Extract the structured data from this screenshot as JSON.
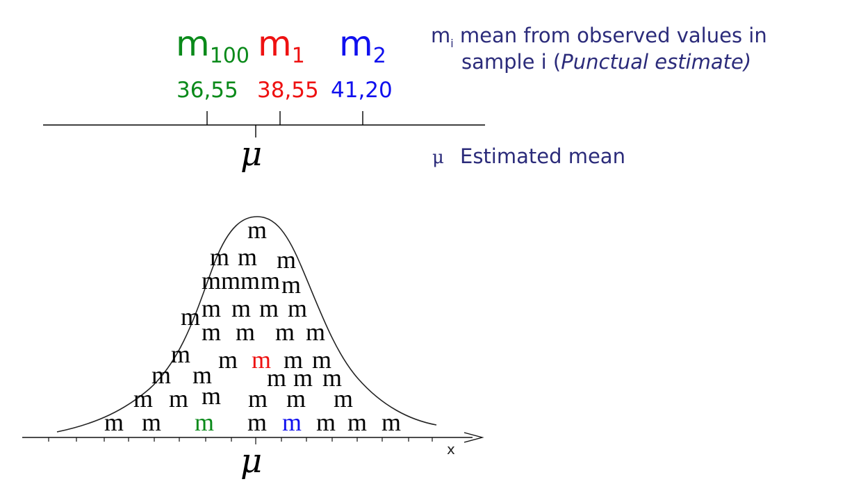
{
  "colors": {
    "green": "#0a8a1a",
    "red": "#ee1111",
    "blue": "#1010ee",
    "navy": "#2b2b7a",
    "black": "#000000"
  },
  "samples": [
    {
      "base": "m",
      "subscript": "100",
      "value": "36,55",
      "color": "green"
    },
    {
      "base": "m",
      "subscript": "1",
      "value": "38,55",
      "color": "red"
    },
    {
      "base": "m",
      "subscript": "2",
      "value": "41,20",
      "color": "blue"
    }
  ],
  "axis": {
    "mu_label": "μ"
  },
  "legend": {
    "mi_base": "m",
    "mi_subscript": "i",
    "mi_text": " mean from observed values in",
    "mi_text2_prefix": "sample i (",
    "mi_text2_italic": "Punctual estimate)",
    "mu_symbol": "μ",
    "mu_text": "Estimated mean"
  },
  "distribution": {
    "mu_label": "μ",
    "x_axis_label": "x",
    "mark_glyph": "m"
  }
}
